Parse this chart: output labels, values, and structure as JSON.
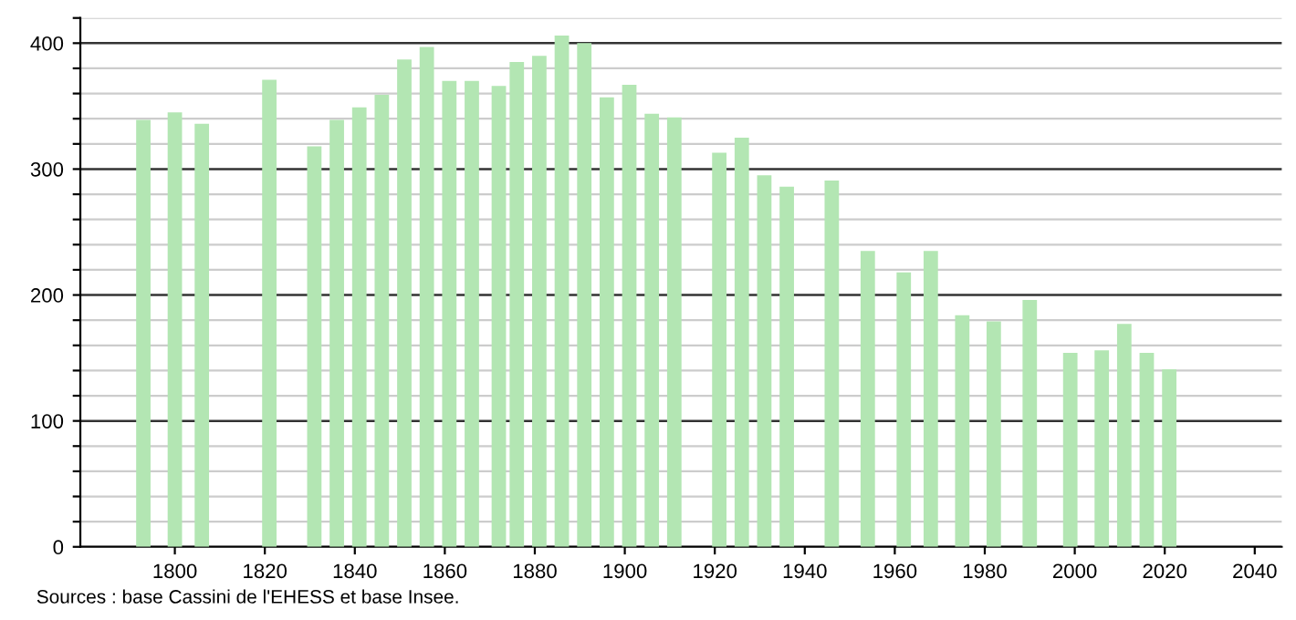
{
  "chart_data": {
    "type": "bar",
    "color": "#b3e6b3",
    "x": [
      1793,
      1800,
      1806,
      1821,
      1831,
      1836,
      1841,
      1846,
      1851,
      1856,
      1861,
      1866,
      1872,
      1876,
      1881,
      1886,
      1891,
      1896,
      1901,
      1906,
      1911,
      1921,
      1926,
      1931,
      1936,
      1946,
      1954,
      1962,
      1968,
      1975,
      1982,
      1990,
      1999,
      2006,
      2011,
      2016,
      2021
    ],
    "values": [
      339,
      345,
      336,
      371,
      318,
      339,
      349,
      359,
      387,
      397,
      370,
      370,
      366,
      385,
      390,
      406,
      400,
      357,
      367,
      344,
      341,
      313,
      325,
      295,
      286,
      291,
      235,
      218,
      235,
      184,
      179,
      196,
      154,
      156,
      177,
      154,
      141
    ],
    "xlim": [
      1779,
      2046
    ],
    "xticks": [
      1800,
      1820,
      1840,
      1860,
      1880,
      1900,
      1920,
      1940,
      1960,
      1980,
      2000,
      2020,
      2040
    ],
    "ylim": [
      0,
      420
    ],
    "yticks": [
      0,
      {
        "value": 20,
        "label": null
      },
      {
        "value": 40,
        "label": null
      },
      {
        "value": 60,
        "label": null
      },
      {
        "value": 80,
        "label": null
      },
      100,
      {
        "value": 120,
        "label": null
      },
      {
        "value": 140,
        "label": null
      },
      {
        "value": 160,
        "label": null
      },
      {
        "value": 180,
        "label": null
      },
      200,
      {
        "value": 220,
        "label": null
      },
      {
        "value": 240,
        "label": null
      },
      {
        "value": 260,
        "label": null
      },
      {
        "value": 280,
        "label": null
      },
      300,
      {
        "value": 320,
        "label": null
      },
      {
        "value": 340,
        "label": null
      },
      {
        "value": 360,
        "label": null
      },
      {
        "value": 380,
        "label": null
      },
      400,
      {
        "value": 420,
        "label": null
      }
    ],
    "grid": "y",
    "annotations": [
      "Sources : base Cassini de l'EHESS et base Insee."
    ]
  }
}
